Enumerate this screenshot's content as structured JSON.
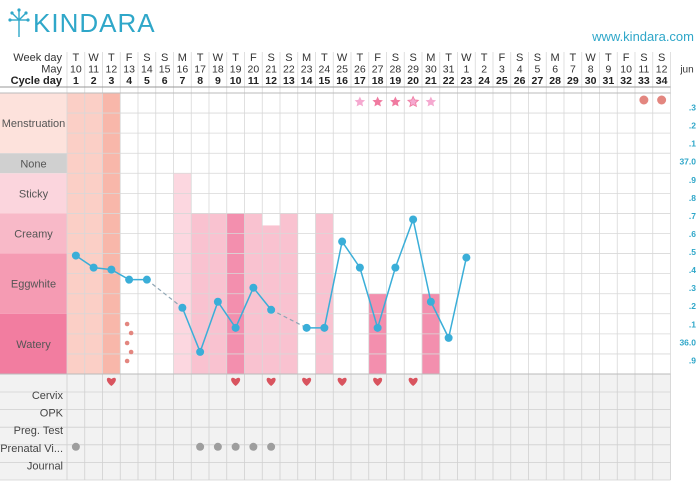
{
  "brand": {
    "logo_text": "KINDARA",
    "url": "www.kindara.com"
  },
  "colors": {
    "accent": "#2fa7c9",
    "temp_line": "#3aaed8",
    "heart": "#d9545f",
    "star": "#f07aa0",
    "star_light": "#f5a9d0",
    "mens_dot": "#e3867f",
    "gray_dot": "#9e9e9e",
    "mens_bg": "#fde2dc",
    "none_bg": "#d0d0d0",
    "sticky_bg": "#fbd5dd",
    "creamy_bg": "#f8b9c8",
    "eggwhite_bg": "#f59bb3",
    "watery_bg": "#f27da0"
  },
  "header_labels": {
    "weekday": "Week day",
    "month": "May",
    "cycleday": "Cycle day",
    "next_month": "jun"
  },
  "weekdays": [
    "T",
    "W",
    "T",
    "F",
    "S",
    "S",
    "M",
    "T",
    "W",
    "T",
    "F",
    "S",
    "S",
    "M",
    "T",
    "W",
    "T",
    "F",
    "S",
    "S",
    "M",
    "T",
    "W",
    "T",
    "F",
    "S",
    "S",
    "M",
    "T",
    "W",
    "T",
    "F",
    "S",
    "S"
  ],
  "dates": [
    "10",
    "11",
    "12",
    "13",
    "14",
    "15",
    "16",
    "17",
    "18",
    "19",
    "20",
    "21",
    "22",
    "23",
    "24",
    "25",
    "26",
    "27",
    "28",
    "29",
    "30",
    "31",
    "1",
    "2",
    "3",
    "4",
    "5",
    "6",
    "7",
    "8",
    "9",
    "10",
    "11",
    "12"
  ],
  "cycle_days": [
    "1",
    "2",
    "3",
    "4",
    "5",
    "6",
    "7",
    "8",
    "9",
    "10",
    "11",
    "12",
    "13",
    "14",
    "15",
    "16",
    "17",
    "18",
    "19",
    "20",
    "21",
    "22",
    "23",
    "24",
    "25",
    "26",
    "27",
    "28",
    "29",
    "30",
    "31",
    "32",
    "33",
    "34"
  ],
  "fluid_rows": [
    {
      "label": "Menstruation",
      "key": "menstruation"
    },
    {
      "label": "None",
      "key": "none"
    },
    {
      "label": "Sticky",
      "key": "sticky"
    },
    {
      "label": "Creamy",
      "key": "creamy"
    },
    {
      "label": "Eggwhite",
      "key": "eggwhite"
    },
    {
      "label": "Watery",
      "key": "watery"
    }
  ],
  "bottom_rows": [
    {
      "label": "Cervix"
    },
    {
      "label": "OPK"
    },
    {
      "label": "Preg. Test"
    },
    {
      "label": "Prenatal Vi..."
    },
    {
      "label": "Journal"
    }
  ],
  "temp_axis_labels": [
    ".3",
    ".2",
    ".1",
    "37.0",
    ".9",
    ".8",
    ".7",
    ".6",
    ".5",
    ".4",
    ".3",
    ".2",
    ".1",
    "36.0",
    ".9"
  ],
  "chart_data": {
    "type": "line",
    "title": "",
    "xlabel": "Cycle day",
    "ylabel": "",
    "x": [
      1,
      2,
      3,
      4,
      5,
      6,
      7,
      8,
      9,
      10,
      11,
      12,
      13,
      14,
      15,
      16,
      17,
      18,
      19,
      20,
      21,
      22,
      23
    ],
    "series": [
      {
        "values": [
          36.49,
          36.43,
          36.42,
          36.37,
          36.37,
          null,
          36.23,
          36.01,
          36.26,
          36.13,
          36.33,
          36.22,
          null,
          36.13,
          36.13,
          36.56,
          36.43,
          36.13,
          36.43,
          36.67,
          36.26,
          36.08,
          36.48
        ]
      }
    ],
    "temp_range": [
      35.9,
      37.3
    ],
    "bleeding_days": [
      1,
      2,
      3
    ],
    "bleeding_intensity": [
      "heavy",
      "heavy",
      "medium"
    ],
    "spotting_days": [
      4
    ],
    "star_days": [
      17,
      18,
      19,
      20,
      21
    ],
    "star_styles": [
      "light",
      "dark",
      "dark",
      "sparkle",
      "light"
    ],
    "fluid_bars": [
      {
        "day": 7,
        "level": "sticky"
      },
      {
        "day": 8,
        "level": "creamy"
      },
      {
        "day": 9,
        "level": "creamy"
      },
      {
        "day": 10,
        "level": "creamy"
      },
      {
        "day": 11,
        "level": "creamy"
      },
      {
        "day": 12,
        "level": "creamy"
      },
      {
        "day": 13,
        "level": "creamy"
      },
      {
        "day": 15,
        "level": "creamy"
      },
      {
        "day": 18,
        "level": "eggwhite"
      },
      {
        "day": 21,
        "level": "eggwhite"
      }
    ],
    "dark_fluid_days": [
      10,
      18,
      21
    ],
    "intercourse_days": [
      3,
      10,
      12,
      14,
      16,
      18,
      20
    ],
    "prenatal_days": [
      1,
      8,
      9,
      10,
      11,
      12
    ],
    "right_marker_days": [
      33,
      34
    ]
  }
}
